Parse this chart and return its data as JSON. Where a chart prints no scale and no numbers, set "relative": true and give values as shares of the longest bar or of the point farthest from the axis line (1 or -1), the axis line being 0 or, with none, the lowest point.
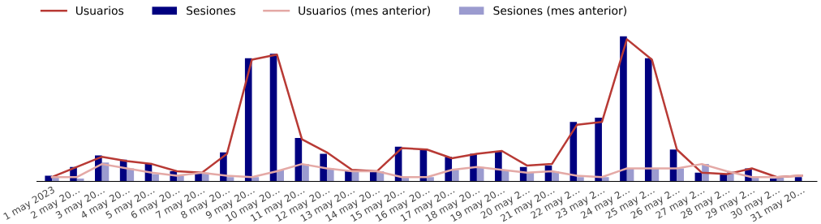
{
  "chart_data": {
    "type": "bar",
    "relative": true,
    "legend": "top left",
    "grid": false,
    "categories": [
      "1 may 2023",
      "2 may 20…",
      "3 may 20…",
      "4 may 20…",
      "5 may 20…",
      "6 may 20…",
      "7 may 20…",
      "8 may 20…",
      "9 may 20…",
      "10 may 20…",
      "11 may 20…",
      "12 may 20…",
      "13 may 20…",
      "14 may 20…",
      "15 may 20…",
      "16 may 20…",
      "17 may 20…",
      "18 may 20…",
      "19 may 20…",
      "20 may 2…",
      "21 may 20…",
      "22 may 2…",
      "23 may 2…",
      "24 may 2…",
      "25 may 2…",
      "26 may 2…",
      "27 may 2…",
      "28 may 2…",
      "29 may 2…",
      "30 may 2…",
      "31 may 20…"
    ],
    "series": [
      {
        "name": "Usuarios",
        "type": "line",
        "color": "#b83a35",
        "values": [
          0.03,
          0.1,
          0.17,
          0.14,
          0.12,
          0.07,
          0.06,
          0.19,
          0.84,
          0.875,
          0.29,
          0.2,
          0.08,
          0.07,
          0.23,
          0.22,
          0.16,
          0.19,
          0.21,
          0.11,
          0.12,
          0.39,
          0.41,
          0.98,
          0.84,
          0.22,
          0.06,
          0.05,
          0.09,
          0.03,
          0.04
        ]
      },
      {
        "name": "Sesiones",
        "color": "#000080",
        "values": [
          0.04,
          0.1,
          0.18,
          0.15,
          0.12,
          0.07,
          0.06,
          0.2,
          0.85,
          0.88,
          0.3,
          0.19,
          0.07,
          0.07,
          0.24,
          0.22,
          0.17,
          0.19,
          0.21,
          0.1,
          0.11,
          0.41,
          0.44,
          1.0,
          0.85,
          0.22,
          0.06,
          0.05,
          0.09,
          0.02,
          0.03
        ]
      },
      {
        "name": "Usuarios (mes anterior)",
        "type": "line",
        "color": "#e4a9a6",
        "values": [
          0.03,
          0.03,
          0.12,
          0.09,
          0.06,
          0.04,
          0.06,
          0.04,
          0.03,
          0.07,
          0.12,
          0.09,
          0.07,
          0.07,
          0.03,
          0.03,
          0.08,
          0.1,
          0.08,
          0.06,
          0.07,
          0.04,
          0.03,
          0.09,
          0.09,
          0.09,
          0.12,
          0.07,
          0.03,
          0.03,
          0.04
        ]
      },
      {
        "name": "Sesiones (mes anterior)",
        "color": "#9b9bcf",
        "values": [
          0.03,
          0.02,
          0.13,
          0.09,
          0.05,
          0.04,
          0.06,
          0.03,
          0.03,
          0.08,
          0.12,
          0.09,
          0.07,
          0.07,
          0.03,
          0.03,
          0.08,
          0.1,
          0.08,
          0.06,
          0.07,
          0.03,
          0.03,
          0.09,
          0.09,
          0.09,
          0.12,
          0.07,
          0.03,
          0.03,
          0.0
        ]
      }
    ]
  }
}
